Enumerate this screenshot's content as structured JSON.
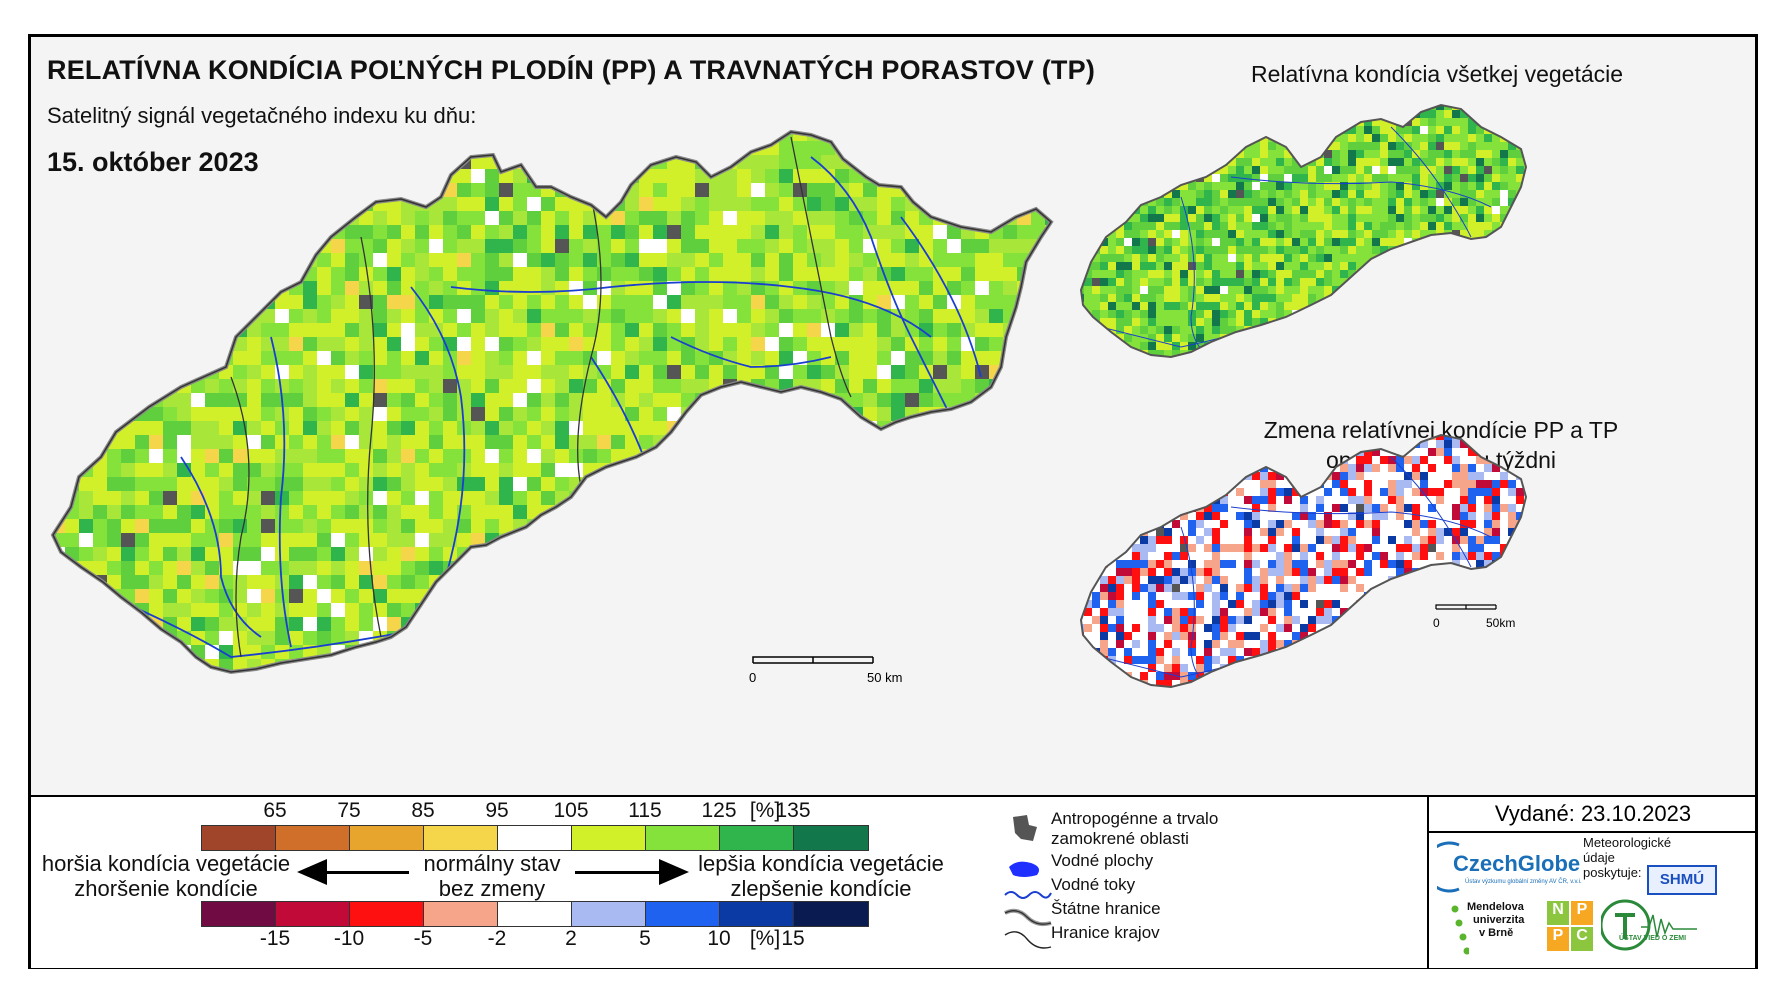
{
  "header": {
    "title": "RELATÍVNA KONDÍCIA POĽNÝCH PLODÍN (PP) A TRAVNATÝCH PORASTOV (TP)",
    "subtitle": "Satelitný signál vegetačného indexu ku dňu:",
    "date": "15. október 2023"
  },
  "insets": {
    "all_vegetation_title": "Relatívna kondícia všetkej vegetácie",
    "change_title_line1": "Zmena relatívnej kondície PP a TP",
    "change_title_line2": "oproti minulému týždni"
  },
  "scalebar_main": {
    "start": "0",
    "end": "50 km"
  },
  "scalebar_inset": {
    "start": "0",
    "end": "50km"
  },
  "legend": {
    "condition_ticks": [
      "65",
      "75",
      "85",
      "95",
      "105",
      "115",
      "125",
      "135",
      "[%]"
    ],
    "condition_colors": [
      "#a0452a",
      "#cf6f2a",
      "#e8a52e",
      "#f5d64a",
      "#ffffff",
      "#d2f02a",
      "#85e23a",
      "#2fb54c",
      "#12774a"
    ],
    "change_ticks": [
      "-15",
      "-10",
      "-5",
      "-2",
      "2",
      "5",
      "10",
      "15",
      "[%]"
    ],
    "change_colors": [
      "#700b43",
      "#c20a38",
      "#ff1010",
      "#f7a58a",
      "#ffffff",
      "#a9b9f2",
      "#1f62f0",
      "#0c3aa4",
      "#0a1b52"
    ],
    "worse_line1": "horšia kondícia vegetácie",
    "worse_line2": "zhoršenie kondície",
    "normal_line1": "normálny stav",
    "normal_line2": "bez zmeny",
    "better_line1": "lepšia kondícia vegetácie",
    "better_line2": "zlepšenie kondície"
  },
  "symbols": {
    "anthropogenic_line1": "Antropogénne a trvalo",
    "anthropogenic_line2": "zamokrené oblasti",
    "water_bodies": "Vodné plochy",
    "water_streams": "Vodné toky",
    "state_border": "Štátne hranice",
    "region_border": "Hranice krajov"
  },
  "issued": {
    "label": "Vydané: 23.10.2023"
  },
  "logos": {
    "czechglobe": "CzechGlobe",
    "czechglobe_sub": "Ústav výzkumu globální změny AV ČR, v.v.i.",
    "meteo_line1": "Meteorologické",
    "meteo_line2": "údaje",
    "meteo_line3": "poskytuje:",
    "shmu": "SHMÚ",
    "mendel_line1": "Mendelova",
    "mendel_line2": "univerzita",
    "mendel_line3": "v Brně",
    "nppc_letters": [
      "N",
      "P",
      "P",
      "C"
    ],
    "uvz": "ÚSTAV VIED O ZEMI"
  },
  "colors": {
    "stream": "#1a3fd0",
    "border": "#333333",
    "anthropogenic": "#555555"
  }
}
